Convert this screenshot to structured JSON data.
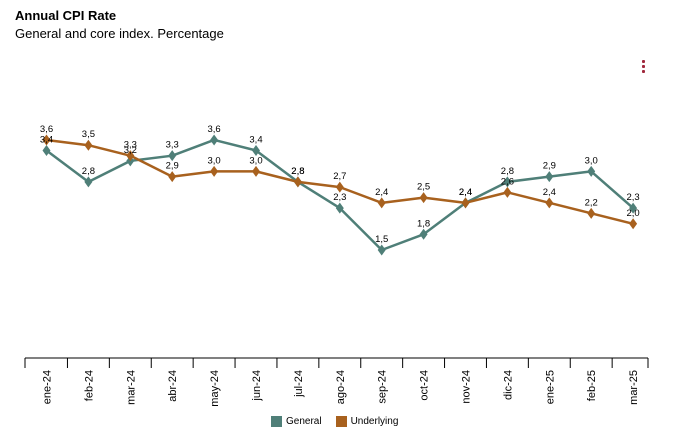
{
  "chart_data": {
    "type": "line",
    "title": "Annual CPI Rate",
    "subtitle": "General and core index. Percentage",
    "categories": [
      "ene-24",
      "feb-24",
      "mar-24",
      "abr-24",
      "may-24",
      "jun-24",
      "jul-24",
      "ago-24",
      "sep-24",
      "oct-24",
      "nov-24",
      "dic-24",
      "ene-25",
      "feb-25",
      "mar-25"
    ],
    "series": [
      {
        "name": "General",
        "color": "#4f7f78",
        "values": [
          3.4,
          2.8,
          3.2,
          3.3,
          3.6,
          3.4,
          2.8,
          2.3,
          1.5,
          1.8,
          2.4,
          2.8,
          2.9,
          3.0,
          2.3
        ],
        "labels": [
          "3,4",
          "2,8",
          "3,2",
          "3,3",
          "3,6",
          "3,4",
          "2,8",
          "2,3",
          "1,5",
          "1,8",
          "2,4",
          "2,8",
          "2,9",
          "3,0",
          "2,3"
        ]
      },
      {
        "name": "Underlying",
        "color": "#a8611e",
        "values": [
          3.6,
          3.5,
          3.3,
          2.9,
          3.0,
          3.0,
          2.8,
          2.7,
          2.4,
          2.5,
          2.4,
          2.6,
          2.4,
          2.2,
          2.0
        ],
        "labels": [
          "3,6",
          "3,5",
          "3,3",
          "2,9",
          "3,0",
          "3,0",
          "2,8",
          "2,7",
          "2,4",
          "2,5",
          "2,4",
          "2,6",
          "2,4",
          "2,2",
          "2,0"
        ]
      }
    ],
    "legend_position": "bottom-center",
    "grid": false
  }
}
